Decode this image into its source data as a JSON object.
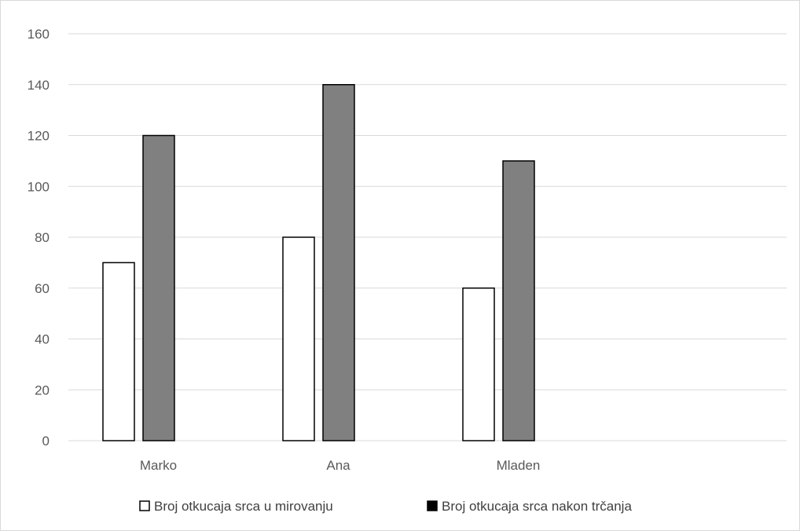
{
  "chart_data": {
    "type": "bar",
    "categories": [
      "Marko",
      "Ana",
      "Mladen"
    ],
    "series": [
      {
        "name": "Broj otkucaja srca u mirovanju",
        "values": [
          70,
          80,
          60
        ],
        "color": "#ffffff"
      },
      {
        "name": "Broj otkucaja srca nakon trčanja",
        "values": [
          120,
          140,
          110
        ],
        "color": "#808080"
      }
    ],
    "ylim": [
      0,
      160
    ],
    "yticks": [
      0,
      20,
      40,
      60,
      80,
      100,
      120,
      140,
      160
    ],
    "grid": true,
    "legend_position": "bottom",
    "title": "",
    "xlabel": "",
    "ylabel": ""
  }
}
